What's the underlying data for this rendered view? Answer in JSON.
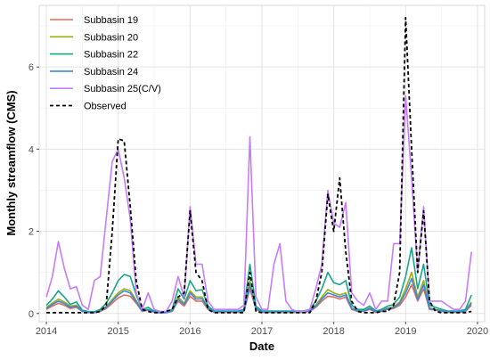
{
  "chart_data": {
    "type": "line",
    "title": "",
    "xlabel": "Date",
    "ylabel": "Monthly streamflow (CMS)",
    "xlim": [
      2013.9,
      2020.1
    ],
    "ylim": [
      -0.2,
      7.5
    ],
    "x_ticks": [
      2014,
      2015,
      2016,
      2017,
      2018,
      2019,
      2020
    ],
    "x_tick_labels": [
      "2014",
      "2015",
      "2016",
      "2017",
      "2018",
      "2019",
      "2020"
    ],
    "y_ticks": [
      0,
      2,
      4,
      6
    ],
    "y_tick_labels": [
      "0",
      "2",
      "4",
      "6"
    ],
    "grid": true,
    "legend_position": "top-left",
    "x": [
      2014.0,
      2014.083,
      2014.167,
      2014.25,
      2014.333,
      2014.417,
      2014.5,
      2014.583,
      2014.667,
      2014.75,
      2014.833,
      2014.917,
      2015.0,
      2015.083,
      2015.167,
      2015.25,
      2015.333,
      2015.417,
      2015.5,
      2015.583,
      2015.667,
      2015.75,
      2015.833,
      2015.917,
      2016.0,
      2016.083,
      2016.167,
      2016.25,
      2016.333,
      2016.417,
      2016.5,
      2016.583,
      2016.667,
      2016.75,
      2016.833,
      2016.917,
      2017.0,
      2017.083,
      2017.167,
      2017.25,
      2017.333,
      2017.417,
      2017.5,
      2017.583,
      2017.667,
      2017.75,
      2017.833,
      2017.917,
      2018.0,
      2018.083,
      2018.167,
      2018.25,
      2018.333,
      2018.417,
      2018.5,
      2018.583,
      2018.667,
      2018.75,
      2018.833,
      2018.917,
      2019.0,
      2019.083,
      2019.167,
      2019.25,
      2019.333,
      2019.417,
      2019.5,
      2019.583,
      2019.667,
      2019.75,
      2019.833,
      2019.917
    ],
    "series": [
      {
        "name": "Subbasin 19",
        "color": "#e06b5c",
        "dash": false,
        "values": [
          0.1,
          0.18,
          0.25,
          0.2,
          0.12,
          0.15,
          0.05,
          0.03,
          0.02,
          0.05,
          0.12,
          0.25,
          0.38,
          0.45,
          0.42,
          0.25,
          0.05,
          0.08,
          0.03,
          0.02,
          0.02,
          0.05,
          0.3,
          0.18,
          0.42,
          0.3,
          0.3,
          0.1,
          0.03,
          0.03,
          0.03,
          0.03,
          0.03,
          0.05,
          0.6,
          0.1,
          0.03,
          0.03,
          0.03,
          0.03,
          0.03,
          0.03,
          0.03,
          0.03,
          0.05,
          0.15,
          0.3,
          0.42,
          0.4,
          0.35,
          0.4,
          0.1,
          0.05,
          0.05,
          0.1,
          0.03,
          0.05,
          0.1,
          0.12,
          0.2,
          0.4,
          0.7,
          0.3,
          0.6,
          0.1,
          0.08,
          0.05,
          0.03,
          0.03,
          0.03,
          0.05,
          0.2
        ]
      },
      {
        "name": "Subbasin 20",
        "color": "#9aae0e",
        "dash": false,
        "values": [
          0.15,
          0.25,
          0.35,
          0.28,
          0.18,
          0.2,
          0.06,
          0.04,
          0.03,
          0.07,
          0.17,
          0.34,
          0.5,
          0.6,
          0.55,
          0.32,
          0.07,
          0.1,
          0.04,
          0.03,
          0.03,
          0.07,
          0.4,
          0.25,
          0.55,
          0.4,
          0.4,
          0.13,
          0.04,
          0.04,
          0.04,
          0.04,
          0.04,
          0.07,
          0.8,
          0.13,
          0.04,
          0.04,
          0.04,
          0.04,
          0.04,
          0.04,
          0.04,
          0.04,
          0.07,
          0.2,
          0.4,
          0.58,
          0.5,
          0.45,
          0.5,
          0.13,
          0.07,
          0.07,
          0.13,
          0.04,
          0.07,
          0.13,
          0.16,
          0.28,
          0.6,
          1.0,
          0.4,
          0.8,
          0.13,
          0.1,
          0.07,
          0.04,
          0.04,
          0.04,
          0.07,
          0.28
        ]
      },
      {
        "name": "Subbasin 22",
        "color": "#19a58a",
        "dash": false,
        "values": [
          0.2,
          0.35,
          0.55,
          0.4,
          0.22,
          0.28,
          0.08,
          0.05,
          0.04,
          0.1,
          0.25,
          0.5,
          0.8,
          0.95,
          0.9,
          0.45,
          0.1,
          0.15,
          0.06,
          0.04,
          0.04,
          0.1,
          0.6,
          0.35,
          0.8,
          0.55,
          0.58,
          0.18,
          0.06,
          0.06,
          0.06,
          0.06,
          0.06,
          0.1,
          1.2,
          0.18,
          0.06,
          0.06,
          0.06,
          0.06,
          0.06,
          0.06,
          0.06,
          0.06,
          0.1,
          0.3,
          0.6,
          1.0,
          0.75,
          0.7,
          0.8,
          0.2,
          0.1,
          0.1,
          0.18,
          0.06,
          0.1,
          0.18,
          0.22,
          0.4,
          0.9,
          1.6,
          0.6,
          1.2,
          0.2,
          0.15,
          0.1,
          0.06,
          0.06,
          0.06,
          0.1,
          0.45
        ]
      },
      {
        "name": "Subbasin 24",
        "color": "#3a88e0",
        "dash": false,
        "values": [
          0.12,
          0.22,
          0.3,
          0.24,
          0.15,
          0.18,
          0.05,
          0.03,
          0.02,
          0.06,
          0.15,
          0.3,
          0.45,
          0.55,
          0.5,
          0.28,
          0.06,
          0.09,
          0.04,
          0.02,
          0.02,
          0.06,
          0.35,
          0.22,
          0.5,
          0.35,
          0.36,
          0.12,
          0.04,
          0.04,
          0.04,
          0.04,
          0.04,
          0.06,
          0.7,
          0.12,
          0.04,
          0.04,
          0.04,
          0.04,
          0.04,
          0.04,
          0.04,
          0.04,
          0.06,
          0.18,
          0.35,
          0.5,
          0.45,
          0.4,
          0.45,
          0.12,
          0.06,
          0.06,
          0.12,
          0.04,
          0.06,
          0.12,
          0.14,
          0.25,
          0.5,
          0.85,
          0.35,
          0.7,
          0.12,
          0.09,
          0.06,
          0.04,
          0.04,
          0.04,
          0.06,
          0.25
        ]
      },
      {
        "name": "Subbasin 25(C/V)",
        "color": "#c77cff",
        "dash": false,
        "values": [
          0.4,
          0.9,
          1.75,
          1.1,
          0.6,
          0.65,
          0.2,
          0.1,
          0.8,
          0.9,
          2.3,
          3.7,
          4.0,
          3.3,
          2.3,
          0.5,
          0.1,
          0.5,
          0.1,
          0.05,
          0.05,
          0.3,
          0.9,
          0.4,
          2.6,
          1.2,
          1.2,
          0.3,
          0.1,
          0.1,
          0.1,
          0.1,
          0.1,
          0.2,
          4.3,
          0.4,
          0.1,
          0.1,
          1.2,
          1.7,
          0.3,
          0.1,
          0.05,
          0.05,
          0.1,
          0.6,
          1.2,
          3.0,
          2.2,
          2.1,
          2.7,
          0.5,
          0.3,
          0.2,
          0.5,
          0.1,
          0.3,
          0.3,
          1.7,
          1.7,
          5.3,
          3.3,
          1.0,
          2.6,
          0.3,
          0.3,
          0.3,
          0.2,
          0.1,
          0.1,
          0.3,
          1.5
        ]
      },
      {
        "name": "Observed",
        "color": "#000000",
        "dash": true,
        "values": [
          0.02,
          0.02,
          0.02,
          0.02,
          0.02,
          0.02,
          0.02,
          0.02,
          0.02,
          0.05,
          0.2,
          2.0,
          4.25,
          4.2,
          2.6,
          0.8,
          0.1,
          0.05,
          0.02,
          0.02,
          0.05,
          0.1,
          0.4,
          0.5,
          2.5,
          1.0,
          0.8,
          0.1,
          0.02,
          0.02,
          0.02,
          0.02,
          0.02,
          0.02,
          1.0,
          0.05,
          0.02,
          0.02,
          0.02,
          0.02,
          0.02,
          0.02,
          0.02,
          0.02,
          0.02,
          0.3,
          1.0,
          2.9,
          2.0,
          3.3,
          1.5,
          0.3,
          0.05,
          0.02,
          0.02,
          0.02,
          0.05,
          0.05,
          0.2,
          1.0,
          7.2,
          4.0,
          1.0,
          2.5,
          0.3,
          0.05,
          0.02,
          0.02,
          0.02,
          0.02,
          0.02,
          0.05
        ]
      }
    ]
  }
}
